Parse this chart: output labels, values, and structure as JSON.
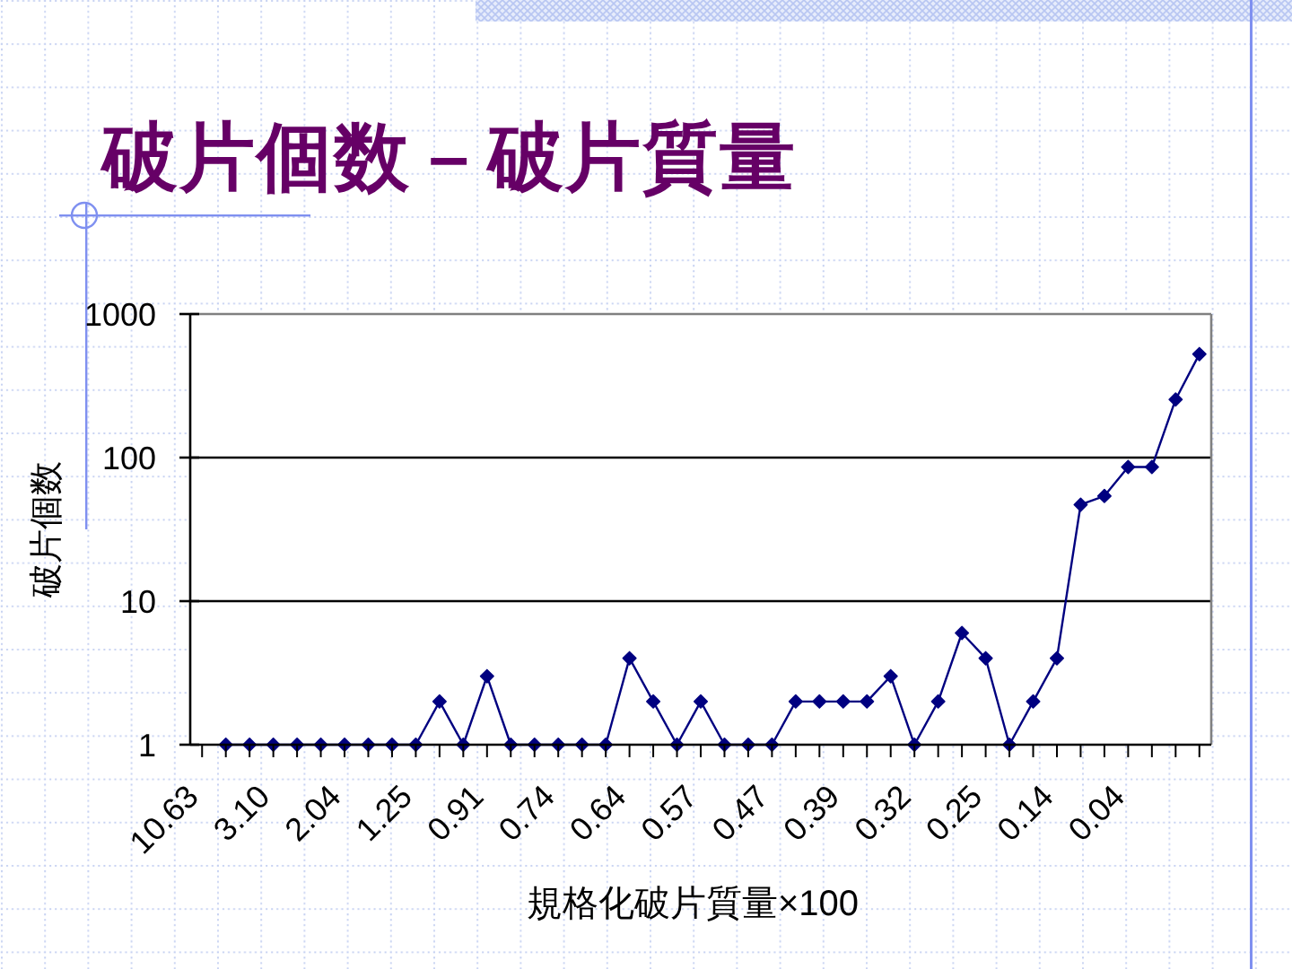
{
  "chart_data": {
    "type": "line",
    "title": "破片個数－破片質量",
    "xlabel": "規格化破片質量×100",
    "ylabel": "破片個数",
    "categories": [
      "10.63",
      null,
      null,
      "3.10",
      null,
      null,
      "2.04",
      null,
      null,
      "1.25",
      null,
      null,
      "0.91",
      null,
      null,
      "0.74",
      null,
      null,
      "0.64",
      null,
      null,
      "0.57",
      null,
      null,
      "0.47",
      null,
      null,
      "0.39",
      null,
      null,
      "0.32",
      null,
      null,
      "0.25",
      null,
      null,
      "0.14",
      null,
      null,
      "0.04",
      null,
      null,
      null
    ],
    "values": [
      null,
      1,
      1,
      1,
      1,
      1,
      1,
      1,
      1,
      1,
      2,
      1,
      3,
      1,
      1,
      1,
      1,
      1,
      4,
      2,
      1,
      2,
      1,
      1,
      1,
      2,
      2,
      2,
      2,
      3,
      1,
      2,
      6,
      4,
      1,
      2,
      4,
      47,
      54,
      86,
      86,
      254,
      526
    ],
    "color": "#000080",
    "marker": "diamond",
    "log": true,
    "ylim": [
      1,
      1000
    ],
    "yticks": [
      1,
      10,
      100,
      1000
    ],
    "grid": "y"
  }
}
